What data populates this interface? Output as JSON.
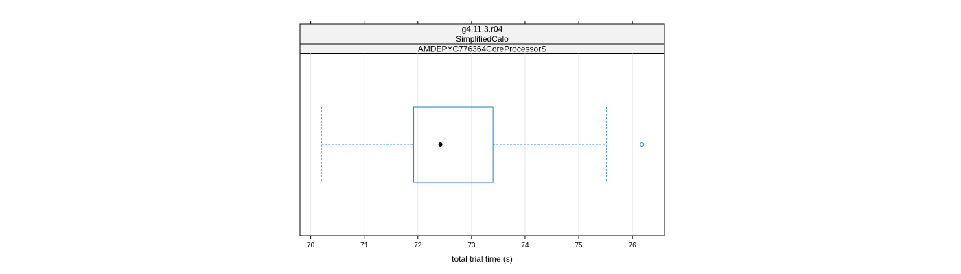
{
  "chart_data": {
    "type": "boxplot",
    "strips": [
      "g4.11.3.r04",
      "SimplifiedCalo",
      "AMDEPYC776364CoreProcessorS"
    ],
    "xlabel": "total trial time (s)",
    "xlim": [
      69.8,
      76.6
    ],
    "ticks": [
      70,
      71,
      72,
      73,
      74,
      75,
      76
    ],
    "grid": true,
    "box": {
      "whisker_low": 70.2,
      "q1": 71.92,
      "median": 72.42,
      "q3": 73.4,
      "whisker_high": 75.52,
      "outliers": [
        76.18
      ]
    },
    "colors": {
      "box": "#1f7fc0",
      "whisker": "#2a8fd0",
      "median_dot": "#000000",
      "strip_fill": "#f2f2f2",
      "grid": "#e6e6e6"
    }
  }
}
